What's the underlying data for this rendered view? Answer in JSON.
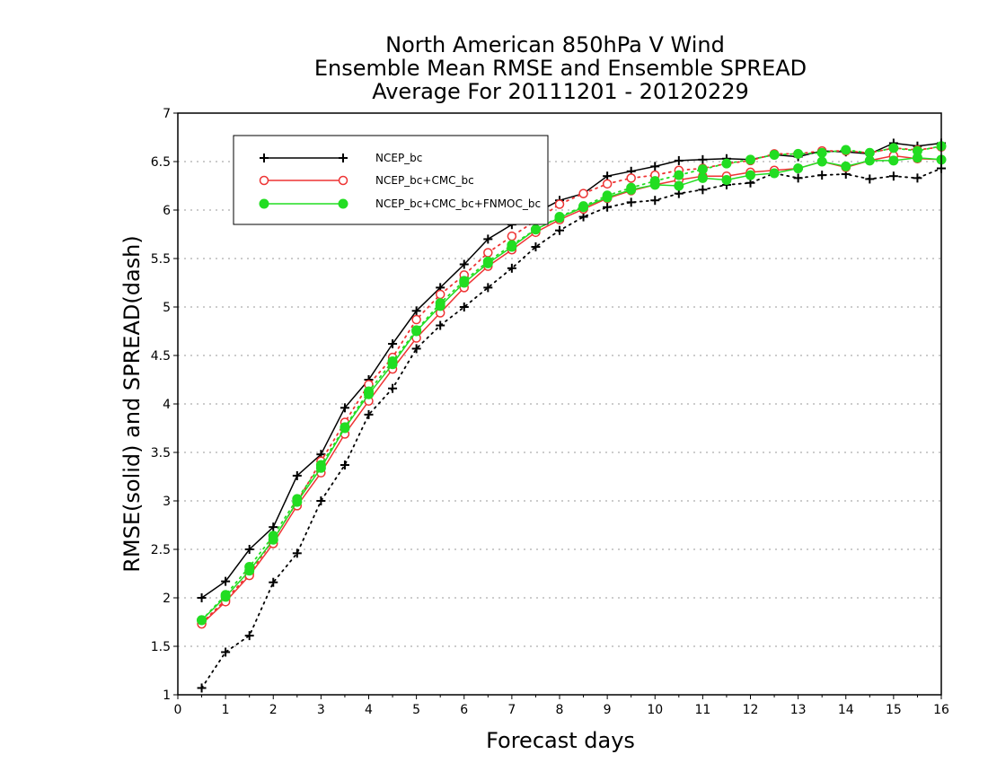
{
  "chart_data": {
    "type": "line",
    "title": [
      "North American 850hPa V Wind",
      "Ensemble Mean RMSE and Ensemble SPREAD",
      "Average For 20111201 - 20120229"
    ],
    "xlabel": "Forecast days",
    "ylabel": "RMSE(solid) and SPREAD(dash)",
    "xlim": [
      0,
      16
    ],
    "ylim": [
      1,
      7
    ],
    "xticks": [
      "0",
      "1",
      "2",
      "3",
      "4",
      "5",
      "6",
      "7",
      "8",
      "9",
      "10",
      "11",
      "12",
      "13",
      "14",
      "15",
      "16"
    ],
    "yticks": [
      "1",
      "1.5",
      "2",
      "2.5",
      "3",
      "3.5",
      "4",
      "4.5",
      "5",
      "5.5",
      "6",
      "6.5",
      "7"
    ],
    "grid": "horizontal dotted",
    "legend_position": "top-left",
    "x": [
      0.5,
      1,
      1.5,
      2,
      2.5,
      3,
      3.5,
      4,
      4.5,
      5,
      5.5,
      6,
      6.5,
      7,
      7.5,
      8,
      8.5,
      9,
      9.5,
      10,
      10.5,
      11,
      11.5,
      12,
      12.5,
      13,
      13.5,
      14,
      14.5,
      15,
      15.5,
      16
    ],
    "series": [
      {
        "name": "NCEP_bc",
        "color": "#000000",
        "marker": "plus",
        "rmse": [
          2.0,
          2.17,
          2.5,
          2.73,
          3.26,
          3.48,
          3.96,
          4.25,
          4.62,
          4.96,
          5.2,
          5.44,
          5.7,
          5.85,
          5.97,
          6.1,
          6.17,
          6.35,
          6.4,
          6.45,
          6.51,
          6.52,
          6.53,
          6.52,
          6.57,
          6.55,
          6.61,
          6.6,
          6.58,
          6.69,
          6.66,
          6.69
        ],
        "spread": [
          1.07,
          1.44,
          1.61,
          2.16,
          2.46,
          3.0,
          3.37,
          3.89,
          4.16,
          4.57,
          4.81,
          5.0,
          5.2,
          5.4,
          5.62,
          5.79,
          5.93,
          6.03,
          6.08,
          6.1,
          6.17,
          6.21,
          6.26,
          6.28,
          6.38,
          6.33,
          6.36,
          6.37,
          6.32,
          6.35,
          6.33,
          6.43
        ]
      },
      {
        "name": "NCEP_bc+CMC_bc",
        "color": "#ee3333",
        "marker": "circle-open",
        "rmse": [
          1.73,
          1.96,
          2.23,
          2.56,
          2.95,
          3.29,
          3.69,
          4.03,
          4.36,
          4.68,
          4.94,
          5.2,
          5.42,
          5.59,
          5.77,
          5.9,
          6.01,
          6.12,
          6.2,
          6.26,
          6.31,
          6.35,
          6.35,
          6.39,
          6.41,
          6.43,
          6.5,
          6.44,
          6.51,
          6.56,
          6.53,
          6.52
        ],
        "spread": [
          1.74,
          1.98,
          2.25,
          2.6,
          2.99,
          3.41,
          3.81,
          4.2,
          4.48,
          4.87,
          5.13,
          5.33,
          5.56,
          5.73,
          5.89,
          6.06,
          6.17,
          6.27,
          6.33,
          6.36,
          6.41,
          6.43,
          6.48,
          6.51,
          6.58,
          6.58,
          6.61,
          6.61,
          6.59,
          6.64,
          6.62,
          6.65
        ]
      },
      {
        "name": "NCEP_bc+CMC_bc+FNMOC_bc",
        "color": "#22dd22",
        "marker": "circle-filled",
        "rmse": [
          1.77,
          2.01,
          2.28,
          2.6,
          2.99,
          3.34,
          3.75,
          4.1,
          4.41,
          4.75,
          5.01,
          5.25,
          5.45,
          5.62,
          5.8,
          5.92,
          6.03,
          6.13,
          6.21,
          6.26,
          6.25,
          6.33,
          6.31,
          6.36,
          6.38,
          6.43,
          6.5,
          6.45,
          6.51,
          6.51,
          6.54,
          6.52
        ],
        "spread": [
          1.77,
          2.03,
          2.32,
          2.64,
          3.02,
          3.37,
          3.76,
          4.13,
          4.44,
          4.76,
          5.04,
          5.27,
          5.47,
          5.64,
          5.8,
          5.93,
          6.04,
          6.15,
          6.23,
          6.3,
          6.36,
          6.42,
          6.48,
          6.52,
          6.57,
          6.58,
          6.59,
          6.62,
          6.59,
          6.64,
          6.61,
          6.66
        ]
      }
    ]
  }
}
